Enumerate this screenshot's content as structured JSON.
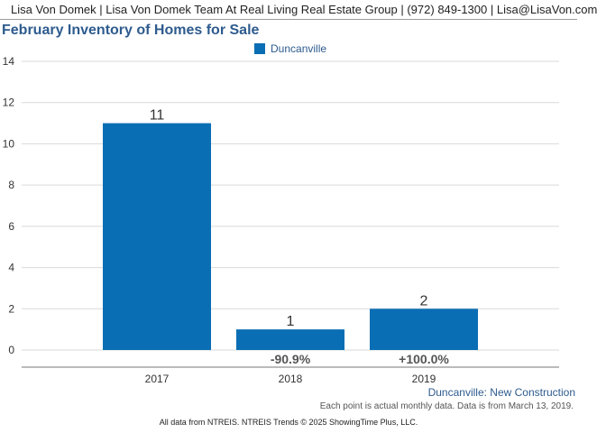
{
  "header": {
    "text": "Lisa Von Domek | Lisa Von Domek Team At Real Living Real Estate Group | (972) 849-1300 | Lisa@LisaVon.com"
  },
  "chart_data": {
    "type": "bar",
    "title": "February Inventory of Homes for Sale",
    "categories": [
      "2017",
      "2018",
      "2019"
    ],
    "series": [
      {
        "name": "Duncanville",
        "values": [
          11,
          1,
          2
        ],
        "color": "#0a6eb4"
      }
    ],
    "value_labels": [
      "11",
      "1",
      "2"
    ],
    "change_labels": [
      "",
      "-90.9%",
      "+100.0%"
    ],
    "ylim": [
      0,
      14
    ],
    "yticks": [
      0,
      2,
      4,
      6,
      8,
      10,
      12,
      14
    ],
    "ytick_labels": [
      "0",
      "2",
      "4",
      "6",
      "8",
      "10",
      "12",
      "14"
    ],
    "grid": true,
    "legend": "top-center"
  },
  "notes": {
    "series_note": "Duncanville: New Construction",
    "data_note": "Each point is actual monthly data. Data is from March 13, 2019.",
    "footer": "All data from NTREIS. NTREIS Trends © 2025 ShowingTime Plus, LLC."
  },
  "colors": {
    "bar": "#0a6eb4",
    "title": "#2e5b8e",
    "grid": "#d9d9d9"
  }
}
